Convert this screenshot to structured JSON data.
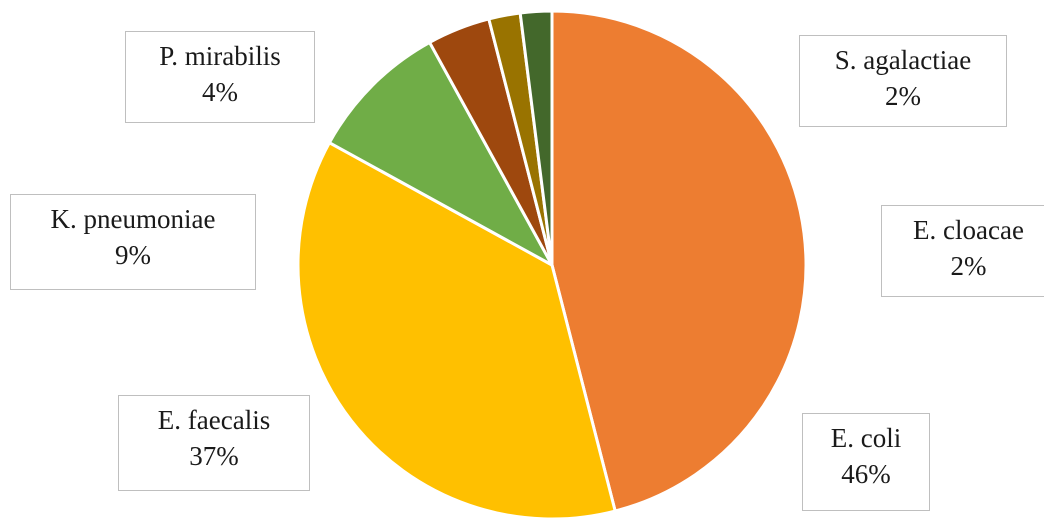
{
  "chart_data": {
    "type": "pie",
    "slices": [
      {
        "label": "E. coli",
        "percent_label": "46%",
        "value": 46,
        "color": "#ED7D31"
      },
      {
        "label": "E. faecalis",
        "percent_label": "37%",
        "value": 37,
        "color": "#FFC000"
      },
      {
        "label": "K. pneumoniae",
        "percent_label": "9%",
        "value": 9,
        "color": "#70AD47"
      },
      {
        "label": "P. mirabilis",
        "percent_label": "4%",
        "value": 4,
        "color": "#9E480E"
      },
      {
        "label": "E. cloacae",
        "percent_label": "2%",
        "value": 2,
        "color": "#997300"
      },
      {
        "label": "S. agalactiae",
        "percent_label": "2%",
        "value": 2,
        "color": "#43682B"
      }
    ],
    "start_angle": "12 o'clock",
    "direction": "clockwise",
    "slice_border_color": "#ffffff",
    "label_style": "boxed callouts with category name and percentage"
  }
}
